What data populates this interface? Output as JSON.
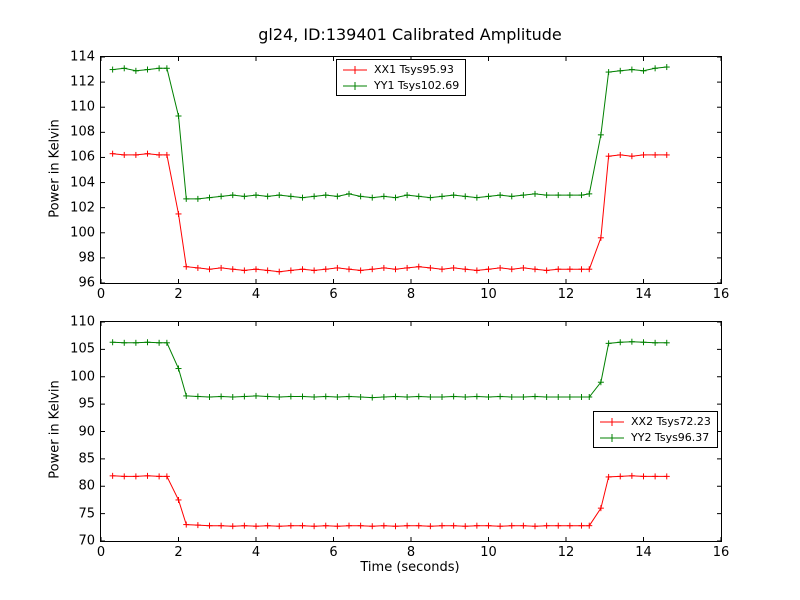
{
  "title": "gl24, ID:139401 Calibrated Amplitude",
  "xlabel": "Time (seconds)",
  "colors": {
    "xx": "#ff0000",
    "yy": "#008000",
    "axis": "#000000",
    "background": "#ffffff"
  },
  "chart_data": [
    {
      "type": "line",
      "ylabel": "Power in Kelvin",
      "xlim": [
        0,
        16
      ],
      "ylim": [
        96,
        114
      ],
      "xticks": [
        0,
        2,
        4,
        6,
        8,
        10,
        12,
        14,
        16
      ],
      "yticks": [
        96,
        98,
        100,
        102,
        104,
        106,
        108,
        110,
        112,
        114
      ],
      "grid": false,
      "legend": {
        "position": "upper center",
        "entries": [
          {
            "label": "XX1 Tsys95.93",
            "color": "#ff0000"
          },
          {
            "label": "YY1 Tsys102.69",
            "color": "#008000"
          }
        ]
      },
      "x": [
        0.3,
        0.6,
        0.9,
        1.2,
        1.5,
        1.7,
        2.0,
        2.2,
        2.5,
        2.8,
        3.1,
        3.4,
        3.7,
        4.0,
        4.3,
        4.6,
        4.9,
        5.2,
        5.5,
        5.8,
        6.1,
        6.4,
        6.7,
        7.0,
        7.3,
        7.6,
        7.9,
        8.2,
        8.5,
        8.8,
        9.1,
        9.4,
        9.7,
        10.0,
        10.3,
        10.6,
        10.9,
        11.2,
        11.5,
        11.8,
        12.1,
        12.4,
        12.6,
        12.9,
        13.1,
        13.4,
        13.7,
        14.0,
        14.3,
        14.6
      ],
      "series": [
        {
          "name": "XX1",
          "color": "#ff0000",
          "marker": "plus",
          "values": [
            106.3,
            106.2,
            106.2,
            106.3,
            106.2,
            106.2,
            101.5,
            97.3,
            97.2,
            97.1,
            97.2,
            97.1,
            97.0,
            97.1,
            97.0,
            96.9,
            97.0,
            97.1,
            97.0,
            97.1,
            97.2,
            97.1,
            97.0,
            97.1,
            97.2,
            97.1,
            97.2,
            97.3,
            97.2,
            97.1,
            97.2,
            97.1,
            97.0,
            97.1,
            97.2,
            97.1,
            97.2,
            97.1,
            97.0,
            97.1,
            97.1,
            97.1,
            97.1,
            99.6,
            106.1,
            106.2,
            106.1,
            106.2,
            106.2,
            106.2
          ]
        },
        {
          "name": "YY1",
          "color": "#008000",
          "marker": "plus",
          "values": [
            113.0,
            113.1,
            112.9,
            113.0,
            113.1,
            113.1,
            109.3,
            102.7,
            102.7,
            102.8,
            102.9,
            103.0,
            102.9,
            103.0,
            102.9,
            103.0,
            102.9,
            102.8,
            102.9,
            103.0,
            102.9,
            103.1,
            102.9,
            102.8,
            102.9,
            102.8,
            103.0,
            102.9,
            102.8,
            102.9,
            103.0,
            102.9,
            102.8,
            102.9,
            103.0,
            102.9,
            103.0,
            103.1,
            103.0,
            103.0,
            103.0,
            103.0,
            103.1,
            107.8,
            112.8,
            112.9,
            113.0,
            112.9,
            113.1,
            113.2
          ]
        }
      ]
    },
    {
      "type": "line",
      "ylabel": "Power in Kelvin",
      "xlim": [
        0,
        16
      ],
      "ylim": [
        70,
        110
      ],
      "xticks": [
        0,
        2,
        4,
        6,
        8,
        10,
        12,
        14,
        16
      ],
      "yticks": [
        70,
        75,
        80,
        85,
        90,
        95,
        100,
        105,
        110
      ],
      "grid": false,
      "legend": {
        "position": "center right",
        "entries": [
          {
            "label": "XX2 Tsys72.23",
            "color": "#ff0000"
          },
          {
            "label": "YY2 Tsys96.37",
            "color": "#008000"
          }
        ]
      },
      "x": [
        0.3,
        0.6,
        0.9,
        1.2,
        1.5,
        1.7,
        2.0,
        2.2,
        2.5,
        2.8,
        3.1,
        3.4,
        3.7,
        4.0,
        4.3,
        4.6,
        4.9,
        5.2,
        5.5,
        5.8,
        6.1,
        6.4,
        6.7,
        7.0,
        7.3,
        7.6,
        7.9,
        8.2,
        8.5,
        8.8,
        9.1,
        9.4,
        9.7,
        10.0,
        10.3,
        10.6,
        10.9,
        11.2,
        11.5,
        11.8,
        12.1,
        12.4,
        12.6,
        12.9,
        13.1,
        13.4,
        13.7,
        14.0,
        14.3,
        14.6
      ],
      "series": [
        {
          "name": "XX2",
          "color": "#ff0000",
          "marker": "plus",
          "values": [
            81.9,
            81.8,
            81.8,
            81.9,
            81.8,
            81.8,
            77.5,
            73.0,
            72.9,
            72.8,
            72.8,
            72.7,
            72.8,
            72.7,
            72.8,
            72.7,
            72.8,
            72.8,
            72.7,
            72.8,
            72.7,
            72.8,
            72.8,
            72.7,
            72.8,
            72.7,
            72.8,
            72.8,
            72.7,
            72.8,
            72.8,
            72.7,
            72.8,
            72.8,
            72.7,
            72.8,
            72.8,
            72.7,
            72.8,
            72.8,
            72.8,
            72.8,
            72.8,
            76.0,
            81.7,
            81.8,
            81.9,
            81.8,
            81.8,
            81.8
          ]
        },
        {
          "name": "YY2",
          "color": "#008000",
          "marker": "plus",
          "values": [
            106.3,
            106.2,
            106.2,
            106.3,
            106.2,
            106.2,
            101.5,
            96.5,
            96.4,
            96.3,
            96.4,
            96.3,
            96.4,
            96.5,
            96.4,
            96.3,
            96.4,
            96.4,
            96.3,
            96.4,
            96.3,
            96.4,
            96.3,
            96.2,
            96.3,
            96.4,
            96.3,
            96.4,
            96.3,
            96.3,
            96.4,
            96.3,
            96.4,
            96.3,
            96.4,
            96.3,
            96.3,
            96.4,
            96.3,
            96.3,
            96.3,
            96.3,
            96.3,
            99.0,
            106.1,
            106.3,
            106.4,
            106.3,
            106.2,
            106.2
          ]
        }
      ]
    }
  ]
}
